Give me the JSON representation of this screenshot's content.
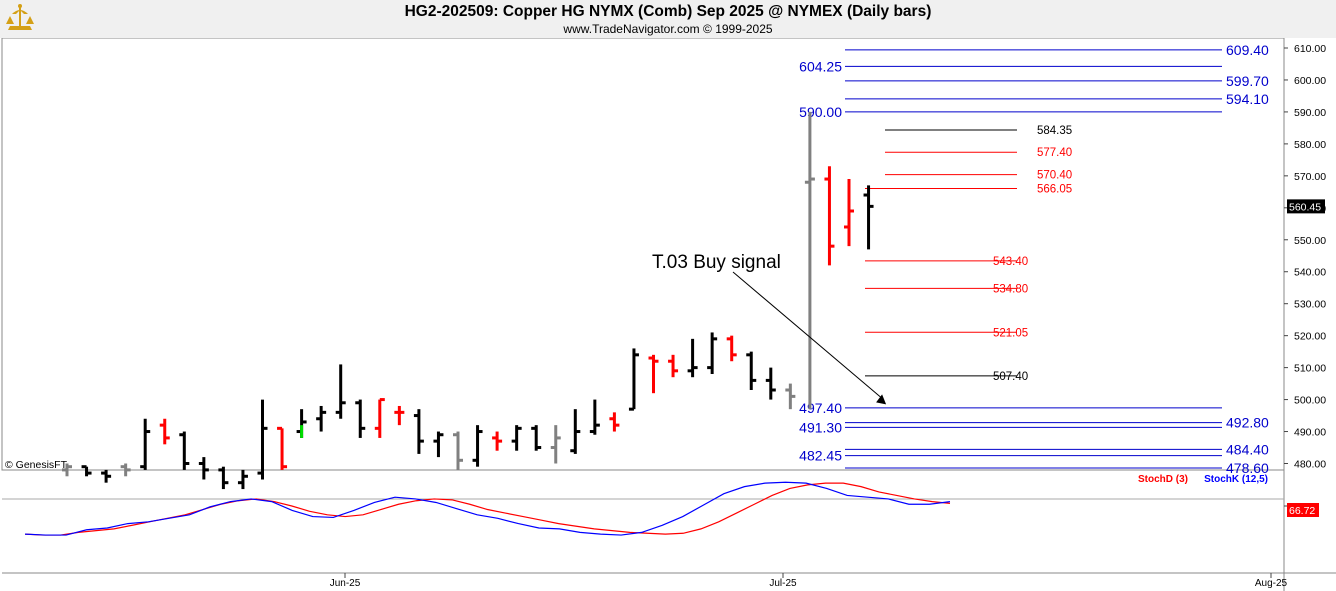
{
  "header": {
    "title": "HG2-202509:  Copper HG NYMX (Comb) Sep 2025 @ NYMEX  (Daily bars)",
    "subtitle": "www.TradeNavigator.com © 1999-2025"
  },
  "colors": {
    "up": "#000000",
    "down": "#ff0000",
    "neutral": "#808080",
    "blue_line": "#0000cc",
    "stochK": "#0000ff",
    "stochD": "#ff0000",
    "inside_green": "#00dd00"
  },
  "chart_data": [
    {
      "type": "ohlc",
      "ylim": [
        477,
        613
      ],
      "yticks": [
        480,
        490,
        500,
        510,
        520,
        530,
        540,
        550,
        560,
        570,
        580,
        590,
        600,
        610
      ],
      "ytick_labels": [
        "480.00",
        "490.00",
        "500.00",
        "510.00",
        "520.00",
        "530.00",
        "540.00",
        "550.00",
        "560.00",
        "570.00",
        "580.00",
        "590.00",
        "600.00",
        "610.00"
      ],
      "last_price_label": "560.45",
      "last_price": 560.45,
      "watermark": "© GenesisFT",
      "annotation": {
        "text": "T.03 Buy signal",
        "bar_index": 42,
        "price": 498.5
      },
      "bars": [
        {
          "o": 478,
          "h": 480,
          "l": 476,
          "c": 479,
          "color": "neutral"
        },
        {
          "o": 479,
          "h": 479,
          "l": 476,
          "c": 477,
          "color": "up"
        },
        {
          "o": 477,
          "h": 478,
          "l": 474,
          "c": 476,
          "color": "up"
        },
        {
          "o": 479,
          "h": 480,
          "l": 476,
          "c": 478,
          "color": "neutral"
        },
        {
          "o": 479,
          "h": 494,
          "l": 478,
          "c": 490,
          "color": "up"
        },
        {
          "o": 492,
          "h": 494,
          "l": 486,
          "c": 488,
          "color": "down"
        },
        {
          "o": 489,
          "h": 490,
          "l": 478,
          "c": 480,
          "color": "up"
        },
        {
          "o": 480,
          "h": 482,
          "l": 475,
          "c": 478,
          "color": "up"
        },
        {
          "o": 478,
          "h": 479,
          "l": 472,
          "c": 474,
          "color": "up"
        },
        {
          "o": 474,
          "h": 478,
          "l": 472,
          "c": 476,
          "color": "up"
        },
        {
          "o": 477,
          "h": 500,
          "l": 475,
          "c": 491,
          "color": "up"
        },
        {
          "o": 491,
          "h": 491,
          "l": 478,
          "c": 479,
          "color": "down"
        },
        {
          "o": 490,
          "h": 497,
          "l": 488,
          "c": 493,
          "color": "inside"
        },
        {
          "o": 494,
          "h": 498,
          "l": 490,
          "c": 496,
          "color": "up"
        },
        {
          "o": 496,
          "h": 511,
          "l": 494,
          "c": 499,
          "color": "up"
        },
        {
          "o": 499,
          "h": 500,
          "l": 488,
          "c": 491,
          "color": "up"
        },
        {
          "o": 491,
          "h": 500,
          "l": 488,
          "c": 500,
          "color": "down"
        },
        {
          "o": 496,
          "h": 498,
          "l": 492,
          "c": 496,
          "color": "down"
        },
        {
          "o": 495,
          "h": 497,
          "l": 483,
          "c": 487,
          "color": "up"
        },
        {
          "o": 487,
          "h": 490,
          "l": 482,
          "c": 489,
          "color": "up"
        },
        {
          "o": 489,
          "h": 490,
          "l": 478,
          "c": 481,
          "color": "neutral"
        },
        {
          "o": 481,
          "h": 492,
          "l": 479,
          "c": 490,
          "color": "up"
        },
        {
          "o": 488,
          "h": 490,
          "l": 484,
          "c": 487,
          "color": "down"
        },
        {
          "o": 487,
          "h": 492,
          "l": 484,
          "c": 491,
          "color": "up"
        },
        {
          "o": 491,
          "h": 492,
          "l": 484,
          "c": 485,
          "color": "up"
        },
        {
          "o": 485,
          "h": 492,
          "l": 480,
          "c": 488,
          "color": "neutral"
        },
        {
          "o": 484,
          "h": 497,
          "l": 483,
          "c": 490,
          "color": "up"
        },
        {
          "o": 490,
          "h": 500,
          "l": 489,
          "c": 492,
          "color": "up"
        },
        {
          "o": 494,
          "h": 496,
          "l": 490,
          "c": 492,
          "color": "down"
        },
        {
          "o": 497,
          "h": 516,
          "l": 497,
          "c": 514,
          "color": "up"
        },
        {
          "o": 513,
          "h": 514,
          "l": 502,
          "c": 512,
          "color": "down"
        },
        {
          "o": 512,
          "h": 514,
          "l": 507,
          "c": 509,
          "color": "down"
        },
        {
          "o": 509,
          "h": 519,
          "l": 507,
          "c": 510,
          "color": "up"
        },
        {
          "o": 510,
          "h": 521,
          "l": 508,
          "c": 519,
          "color": "up"
        },
        {
          "o": 519,
          "h": 520,
          "l": 512,
          "c": 514,
          "color": "down"
        },
        {
          "o": 514,
          "h": 515,
          "l": 503,
          "c": 506,
          "color": "up"
        },
        {
          "o": 506,
          "h": 510,
          "l": 500,
          "c": 503,
          "color": "up"
        },
        {
          "o": 503,
          "h": 505,
          "l": 497,
          "c": 501,
          "color": "neutral"
        },
        {
          "o": 568,
          "h": 590,
          "l": 497,
          "c": 569,
          "color": "neutral"
        },
        {
          "o": 569,
          "h": 573,
          "l": 542,
          "c": 548,
          "color": "down"
        },
        {
          "o": 554,
          "h": 569,
          "l": 548,
          "c": 559,
          "color": "down"
        },
        {
          "o": 564,
          "h": 567,
          "l": 547,
          "c": 560.45,
          "color": "up"
        }
      ],
      "horizontal_levels": [
        {
          "value": 609.4,
          "label": "609.40",
          "color": "blue_line",
          "side": "right"
        },
        {
          "value": 604.25,
          "label": "604.25",
          "color": "blue_line",
          "side": "left"
        },
        {
          "value": 599.7,
          "label": "599.70",
          "color": "blue_line",
          "side": "right"
        },
        {
          "value": 594.1,
          "label": "594.10",
          "color": "blue_line",
          "side": "right"
        },
        {
          "value": 590.0,
          "label": "590.00",
          "color": "blue_line",
          "side": "left"
        },
        {
          "value": 584.35,
          "label": "584.35",
          "color": "up",
          "side": "mid"
        },
        {
          "value": 577.4,
          "label": "577.40",
          "color": "down",
          "side": "mid"
        },
        {
          "value": 570.4,
          "label": "570.40",
          "color": "down",
          "side": "mid"
        },
        {
          "value": 566.05,
          "label": "566.05",
          "color": "down",
          "side": "mid"
        },
        {
          "value": 543.4,
          "label": "543.40",
          "color": "down",
          "side": "mid"
        },
        {
          "value": 534.8,
          "label": "534.80",
          "color": "down",
          "side": "mid"
        },
        {
          "value": 521.05,
          "label": "521.05",
          "color": "down",
          "side": "mid"
        },
        {
          "value": 507.4,
          "label": "507.40",
          "color": "up",
          "side": "mid"
        },
        {
          "value": 497.4,
          "label": "497.40",
          "color": "blue_line",
          "side": "left"
        },
        {
          "value": 492.8,
          "label": "492.80",
          "color": "blue_line",
          "side": "right"
        },
        {
          "value": 491.3,
          "label": "491.30",
          "color": "blue_line",
          "side": "left"
        },
        {
          "value": 484.4,
          "label": "484.40",
          "color": "blue_line",
          "side": "right"
        },
        {
          "value": 482.45,
          "label": "482.45",
          "color": "blue_line",
          "side": "left"
        },
        {
          "value": 478.6,
          "label": "478.60",
          "color": "blue_line",
          "side": "right"
        }
      ]
    },
    {
      "type": "line",
      "series": [
        {
          "name": "StochD (3)",
          "color": "stochD",
          "values": [
            18,
            17,
            17,
            20,
            22,
            24,
            28,
            32,
            36,
            40,
            46,
            52,
            56,
            58,
            55,
            50,
            44,
            40,
            38,
            40,
            46,
            52,
            56,
            58,
            57,
            52,
            46,
            42,
            38,
            34,
            30,
            27,
            24,
            22,
            20,
            19,
            18,
            19,
            24,
            32,
            42,
            52,
            62,
            70,
            74,
            76,
            76,
            72,
            66,
            62,
            58,
            55,
            53
          ]
        },
        {
          "name": "StochK (12,5)",
          "color": "stochK",
          "values": [
            18,
            17,
            17,
            23,
            25,
            30,
            32,
            36,
            40,
            49,
            55,
            58,
            55,
            45,
            38,
            37,
            45,
            54,
            60,
            58,
            54,
            47,
            40,
            36,
            30,
            25,
            24,
            20,
            18,
            17,
            20,
            28,
            38,
            51,
            64,
            72,
            76,
            77,
            76,
            70,
            62,
            60,
            58,
            52,
            52,
            55
          ]
        }
      ],
      "ytick": "50",
      "last_label": "66.72",
      "legend": [
        "StochD (3)",
        "StochK (12,5)"
      ]
    }
  ],
  "x_axis": {
    "labels": [
      "Jun-25",
      "Jul-25",
      "Aug-25"
    ]
  }
}
